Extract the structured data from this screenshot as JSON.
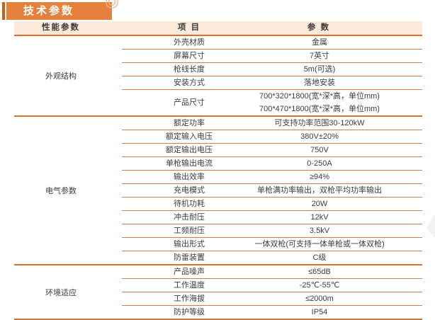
{
  "page_title": "技术参数",
  "colors": {
    "banner_orange": "#e6813d",
    "accent_bar": "#c4631f",
    "header_bg": "#fbeada",
    "section_line": "#dc6f2e",
    "row_line": "#e17a38",
    "text": "#3c3c3c"
  },
  "table": {
    "headers": {
      "performance": "性能参数",
      "item": "项 目",
      "parameter": "参 数"
    },
    "sections": [
      {
        "name": "外观结构",
        "rows": [
          {
            "item": "外壳材质",
            "values": [
              "金属"
            ]
          },
          {
            "item": "屏幕尺寸",
            "values": [
              "7英寸"
            ]
          },
          {
            "item": "枪线长度",
            "values": [
              "5m(可选)"
            ]
          },
          {
            "item": "安装方式",
            "values": [
              "落地安装"
            ]
          },
          {
            "item": "产品尺寸",
            "values": [
              "700*320*1800(宽*深*高，单位mm)",
              "700*470*1800(宽*深*高，单位mm)"
            ]
          }
        ]
      },
      {
        "name": "电气参数",
        "rows": [
          {
            "item": "额定功率",
            "values": [
              "可支持功率范围30-120kW"
            ]
          },
          {
            "item": "额定输入电压",
            "values": [
              "380V±20%"
            ]
          },
          {
            "item": "额定输出电压",
            "values": [
              "750V"
            ]
          },
          {
            "item": "单枪输出电流",
            "values": [
              "0-250A"
            ]
          },
          {
            "item": "输出效率",
            "values": [
              "≥94%"
            ]
          },
          {
            "item": "充电模式",
            "values": [
              "单枪满功率输出，双枪平均功率输出"
            ]
          },
          {
            "item": "待机功耗",
            "values": [
              "20W"
            ]
          },
          {
            "item": "冲击耐压",
            "values": [
              "12kV"
            ]
          },
          {
            "item": "工频耐压",
            "values": [
              "3.5kV"
            ]
          },
          {
            "item": "输出形式",
            "values": [
              "一体双枪(可支持一体单枪或一体双枪)"
            ]
          },
          {
            "item": "防雷装置",
            "values": [
              "C级"
            ]
          }
        ]
      },
      {
        "name": "环境适应",
        "rows": [
          {
            "item": "产品噪声",
            "values": [
              "≤65dB"
            ]
          },
          {
            "item": "工作温度",
            "values": [
              "-25℃-55℃"
            ]
          },
          {
            "item": "工作海拔",
            "values": [
              "≤2000m"
            ]
          },
          {
            "item": "防护等级",
            "values": [
              "IP54"
            ]
          }
        ]
      }
    ]
  }
}
